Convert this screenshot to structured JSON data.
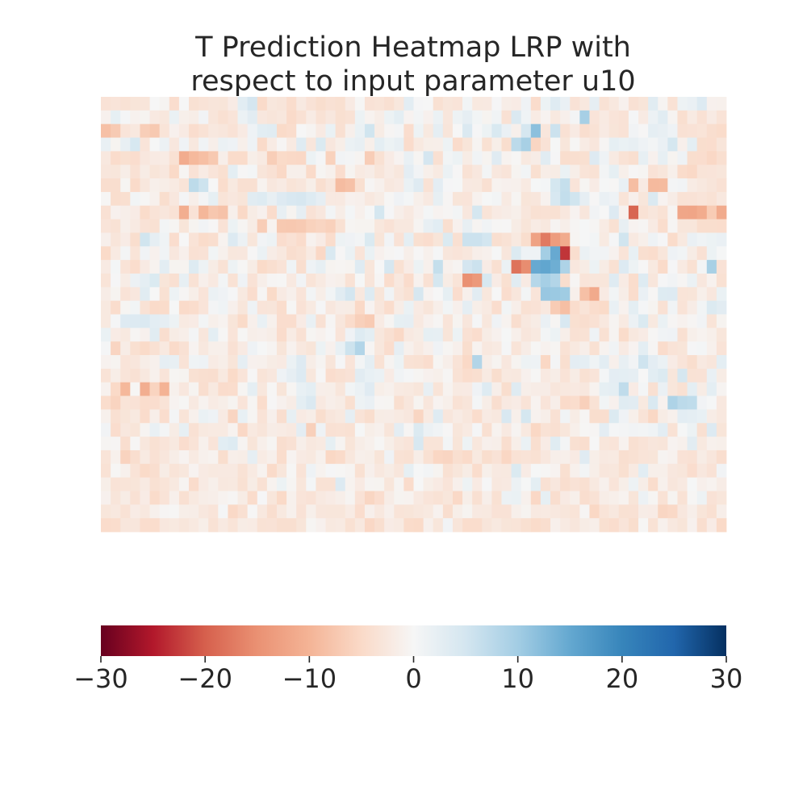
{
  "chart_data": {
    "type": "heatmap",
    "title_lines": [
      "T Prediction Heatmap LRP with",
      "respect to input parameter u10"
    ],
    "grid": false,
    "cmap": "RdBu",
    "vmin": -30,
    "vmax": 30,
    "colorbar": {
      "orientation": "horizontal",
      "placement": "bottom",
      "ticks": [
        -30,
        -20,
        -10,
        0,
        10,
        20,
        30
      ],
      "tick_labels": [
        "−30",
        "−20",
        "−10",
        "0",
        "10",
        "20",
        "30"
      ]
    },
    "rows": [
      "-3.5,-3.2,-3.6,-3.1,-3,0,-0.5,-4.4,0,-3.8,-3.4,-3,-3.1,-1.9,2.9,4.9,-4.8,-2.7,-3,-4.5,-2.3,-3.5,-4.3,-3.7,-4,-2.1,-0.2,-3.5,-3.3,-3.9,-2.7,2.8,0.2,0,-3.8,-2.9,-3.2,0.7,-2.4,-2.3,0.2,-1.6,-1.9,1.1,-4.6,1.4,3.4,1.8,-3.5,-2.5,2.4,-3.6,-2.5,-1,-3.7,-3.1,3.1,-0.5,-3.6,1.3,1.8,3.7,-1,-1.1",
      "-1,2.3,0.3,-0.9,-0.6,-2.3,-2.7,1.7,-1.3,-1.6,0.8,-3,-3.9,-3.2,1.6,3,-2.6,-3,-2.7,-4.8,-3.7,-2,-3.6,-2.6,-4,-3.6,1.4,-0.8,-1.6,1.4,2.6,-0.7,0.6,-1,1.6,-2.8,1.3,2.4,0.7,-0.6,0.9,-3.7,4,1,-2,-0.7,-2.4,-1.2,0.5,9.6,-3.2,-2.2,-3.2,-3.5,0.3,-2.1,1.5,3.1,-0.5,-4.1,-2.2,-3.7,-2.1,-3.4",
      "-8.4,-7.1,-3.2,-2.5,-6.6,-7.3,-3.3,-1,-2.1,-4.4,-3.6,-2.5,-2.8,-3.5,-2.1,1.2,2.9,3.1,-4.9,-4.5,0,-0.5,-2.1,1.7,-3.9,-1.2,1.7,5.3,-1.8,-0.3,0.5,-4.4,1.3,-2.4,2.5,-3,0,4,0.2,1.4,4.2,1.8,-1.2,4.7,11.8,-2.8,5.8,-3.7,-2.1,-4.2,-3.6,-2.1,-3.1,-3.5,0.8,-0.1,2.5,2.1,1.2,-3.7,-3.5,-3.3,-4.2,-4.7",
      "1.9,-0.6,2.1,4.5,-3.2,0.1,1.5,-2.6,1.1,-2.5,0.9,-1.4,1.6,1.2,-1.3,1.2,-4.8,-2,-0.3,-2.2,3.4,-2.8,3.9,-2.6,-1.5,1.6,2.1,-1.3,2.6,1.4,2.1,-4.6,-2.4,-1.5,-1.4,1.3,-4.6,-3.1,-0.5,-3.8,-1.5,-4.3,7.5,9.5,-5.5,-3.5,0.1,-2.9,-0.2,-2,-2.8,-0.3,2.3,1.7,2.1,1.2,0.6,1.8,4.8,-1.2,2.6,-4.3,-4.4,-3",
      "-2.5,-4.6,-4,-4.4,-2.6,-2.1,-2,-3.8,-11.2,-9.4,-8.6,-7.3,-1.4,-4.7,-4.7,-1.5,-2.2,-6.6,-4.9,-5.1,-5.2,1.4,0.3,-6.1,0.8,0.5,-0.5,-6.7,-3.8,-1.9,-0.7,1.9,-0.4,4.9,-3.9,0.7,1.4,-1.8,0.9,-0.6,3.3,-0.8,-0.2,-2.4,-1.7,3.1,0.2,-4.3,-4.1,-4,3.6,1.2,-2.2,-3.6,-4.1,2.2,-1,2.2,-0.6,1.2,-4.3,-4.4,-5.2,-4.1",
      "-2.8,-2.9,-1.6,-3.7,-1.8,-3.1,-2.6,-5,-0.4,-3.5,-2,-3.2,-4,2.6,-0.1,0.4,-3,-3.7,-5.1,-1.3,-1.3,-4.8,-0.4,-1.1,-4.4,-0.6,-2.2,-1.7,-3,-2,-2.7,2.7,0.8,-1.3,-2.2,1.6,-0.1,-3.6,-2.6,0.6,-2.6,-3.2,-0.6,0.7,-4,-1.6,-1.8,1.7,-1.5,-3.3,-3.6,0.6,2.3,-1.3,-0.1,-0.4,-3.5,-2.9,-1.3,-4.7,-5.1,-3.3,-3.2,-2.9",
      "-4.2,-4.2,-0.4,-4.8,-2.7,-1.3,-1.6,-2.2,-3.3,7.3,5.7,0,-4.5,-2.4,-3.9,-3.9,-0.8,-2.6,-2.1,-3.3,-2.8,-1.5,-4.1,-2.8,-8.9,-8.3,-4,-0.3,-1.1,-2.5,-2.1,1.7,3.4,-3.6,2.7,0.2,0.1,-2.3,-2.4,-3.9,-0.8,-1,-1.1,-2.2,0.1,0.4,4.8,6.5,-3.2,-0.4,-1.9,0.1,-0.2,1.9,-8.7,-2.1,-9.2,-9.1,0.5,0.8,-2,-2.5,-3,-3.7",
      "-0.2,-4.3,-4.1,0.7,-0.2,-1.1,-4.3,-2.6,0.5,-1.4,0.5,2.3,-3.3,-2.6,-3.1,3.1,3.5,2.1,3.6,4.3,4.6,3.5,2.4,-2.3,-2.3,-1,-1.2,-2.5,-1.8,-0.2,1.1,0.4,-1.3,-2.3,2.2,-0.3,-3.1,-3.2,-0.9,0.1,0.6,-2.2,-0.4,-3.1,-2.8,-0.9,4.4,6.7,5.3,2.4,-0.1,1.8,1.2,-3.3,-1.2,-2.9,4,-0.7,-1.7,-3.6,-3.5,-3.2,-3.6,-2.5",
      "-3.7,-1,-1.4,-1.9,-4.7,-3.4,-2.8,-3.6,-10.9,-3.5,-9.6,-7.5,-8.1,-1.2,-5.1,-1.8,-1,-4.6,2.1,-0.6,2.4,-3.5,-2.6,0.6,-1.6,0.4,-1.1,0.1,4.8,0.2,-1.4,-2.3,-1,0.4,-0.7,-0.3,0.6,-2.6,4.8,-3.3,-2.1,-1.7,-1.3,-2.8,-3.8,-3.7,-3.8,-2.6,-0.7,-2.8,0.8,0,3.6,-0.9,-19.4,-3.6,-2.8,-3.6,-0.5,-12,-12.2,-11.2,-6.9,-11.3",
      "-3.2,-3.6,-1.3,-2.2,-3.5,-3.8,0.6,-0.4,-3.1,-0.6,0.8,-0.1,-3.5,1.4,-0.4,-1.8,-6.7,-0.8,-7.3,-7.4,-7.1,-6.1,-5.6,-6.2,-3.8,-0.4,-0.6,-0.6,-2.7,-3.5,-2.5,-2.5,-0.5,2.1,2.9,-4.1,-1,2.1,-0.5,0.9,-0.2,-0.1,-1.8,-3.1,-2,-2.5,-0.5,-1.4,-0.3,0.1,-0.3,-2,-3.8,2.1,-0.7,-0.3,-2.1,-4.5,-0.3,-2.9,-2.9,-4.3,-4.3,-4.5",
      "-1.2,-3,-1.9,-4.3,5.3,2.4,1,-4.4,0,-3.4,-4.7,-4.2,-0.8,3.7,1.5,-2.9,0.8,1.3,-4.4,-3.7,-4.6,-0.9,-1.9,-4.5,1.3,1.1,0.6,3.9,-3.1,0.8,-3.5,2.6,-4,-4.4,-3.1,3.9,-3.9,5.8,5.8,5.1,-4.1,-3.6,-2.4,-4.3,-12.6,-17.3,-13.5,-11.3,-0.4,0.1,0.6,-2.2,0.3,5.3,-2.3,-1.3,1.2,0.2,-4.7,-2.4,1.8,1,1.4,1.8",
      "-4.9,-2.2,0.5,-3.3,0.9,-1,0.9,-2.6,-1.2,-3.7,-3.5,0.7,-1.1,-2.7,-2.6,-0.1,1.6,-1.7,-2.5,-4.2,-3.8,-2.2,-5.2,4.1,-0.1,1.6,-3.2,1.7,-1,-0.3,0.2,-1.4,-0.1,-1.1,0.3,-2.8,-3.2,-2.7,-1.4,-1.1,0.1,-2.8,3.8,1.2,1.2,9.9,14.8,-23,-4.2,1.6,0.8,0.8,-0.9,-3.3,2,-4.1,-4.5,-2.9,1.2,0.7,-1.8,-3.7,1.4,0.1",
      "-2.1,0.4,-3.4,-4.5,-2.1,-0.8,2.8,-0.6,-0.6,3.5,1.3,-1.8,-3.6,1.3,-0.2,-1.8,-4.9,-4.1,-3.4,1,-4.2,1.2,2.2,-0.6,-0.4,-0.6,3.4,-2.9,0,4.6,-3.8,-1.9,1.4,-1.1,6.5,-1.1,-0.5,4.9,5.8,-1.9,-3.9,1.6,-18.1,-15.4,14.8,15.3,14.2,8.9,-2.6,-1.8,1.4,-1.8,-3.8,3.7,1.3,-0.1,-2.4,-4.8,0.2,-2.2,-3.8,0.6,9.5,-3.5",
      "-3.3,0.2,-1.8,1.5,2.5,3.9,-3.1,-3.9,2.2,-3.6,-1.2,-2.3,0.6,-3.6,1.1,-3.5,-1.4,-0.3,-0.2,-2.3,0.8,-3.3,-2.2,-1,-1.3,-3.6,0.1,-3,-0.3,-4.5,-2.5,-4.6,-0.9,-3.7,4.8,-1.8,-3.3,-15,-13.9,4.5,-1.9,-4,3.1,-2.1,8.1,9.7,8.4,-4.3,-0.3,-3.2,-2.9,-2.9,3.4,-2,-4.5,3.5,-2.8,0.2,0.8,-0.3,1.6,-2.6,-0.9,-3.8",
      "-1.7,-0.6,-3.4,-2.6,3.1,0,-3.8,1.3,-0.3,-1.5,-3.2,1.6,1.1,0.2,-2.4,-4.4,-0.3,-4.9,-2.1,-1.2,-3.2,0.6,-1.5,0.7,3.1,5,-2.5,3.5,-3.1,0.9,-2.8,-3.8,4.6,-0.7,0,2.3,-4.4,-1.2,3,-2.7,0,-4.4,-2.8,0.6,-3.2,10.8,10.6,10.2,-1.2,-8.4,-11.4,-2.1,0.7,-1.6,-4.5,1.8,-0.2,3.5,3.6,-3.3,-3.1,-1.3,-2.6,1.7",
      "-2.4,-4.5,-0.4,0.7,-3.6,-4.8,-4.7,0.1,-4.8,-4.5,-3.2,0.5,1,-1.2,-2.9,1.2,-3.2,-3,-4.5,-0.2,-3.5,-2.2,0.2,-2.6,-1.7,-1.8,-5.1,-0.7,-2.8,-4.5,-1.6,1.7,-2.1,-3,-1.4,0.7,-1.2,2.5,-1.5,-2.2,-4.4,0.7,-1.4,-3.8,-3.5,-2.5,-6.9,-8.6,-4.5,-3.3,-4.5,-4.9,1.9,-0.9,2.6,0.3,-0.6,-3.7,0.9,-3.4,-1.7,0.7,3.8,3",
      "-2.4,0.3,3.6,3.7,4,2.8,2.4,1.3,-2.2,-1.9,0.6,-1.3,-0.8,-3.1,-4.9,-1.2,1.9,-1.1,-4.4,-4.4,-1.9,1.9,-3.7,-0.3,-2.8,-4.6,-6.3,-7,-2,-0.4,2.3,2.4,-2.3,-1,-0.3,-3.2,-0.6,-2.8,0.3,-2.7,1.1,-0.8,-4.2,-2.5,-1.8,1.8,-0.4,4.3,-4,-4.2,-3.7,-2.5,-0.5,-2.2,1.5,3.9,-2.4,1.7,-0.3,-0.9,-0.3,0.8,-3.3,-0.6",
      "1.7,-1.9,-2.4,-0.3,-1,3.1,-4.2,-1.8,-1.4,0.5,-2.8,2.6,-0.2,-3.2,-0.2,-1.4,-1.2,-1.6,-4.6,-2,-3.7,-0.4,-0.9,-0.1,-3.2,1.1,3.5,2.6,-2.7,-3.9,-5.1,-2.3,-1.8,2.3,2.2,-3.1,1.4,-3.7,-4.4,-1.8,-1,0.1,-1.3,-2.8,-2.4,0.6,1.4,-1.4,-3.7,-3.6,1.2,-3.8,-0.5,-4.7,-2.5,-1.9,-0.2,0.9,1.1,-3.9,-1.3,-0.8,-1.3,-2.9",
      "0.3,-5.6,-1.7,-4,-4.9,-3.8,-2.4,-4.8,-3.7,-0.7,-2.5,-1.3,-1.3,-3.7,-2.1,1.2,0.1,-0.5,-3.1,-0.9,-2.5,-3.1,1.4,-1,2,5.7,8.5,-0.3,-2.7,-4.4,2.4,-1.1,-2.2,-1.2,1.1,-0.4,-1.2,-4.3,-0.8,-2.5,-2.2,0.3,-3.3,-1.7,-0.2,-0.9,-0.4,-3.6,-2.4,-1.4,-3.8,-0.8,0.9,-2.1,-0.7,2.6,-0.3,-4.6,-3.4,-3.1,0.2,0.4,-1.1,-3.4",
      "-0.9,-0.6,-3.2,-2.8,-1.6,-1.1,2.4,2.1,-3.4,1,1.2,-2,-1.5,-3.1,2.4,-1,-1.1,-1.8,-2.1,1.6,3.6,-1.6,-0.5,-3,0.2,-3.2,0.6,2.5,-3.6,-0.5,1.4,-3.6,-3.8,-4.4,-0.4,-1.4,-3.4,-5.1,8.4,-1.6,-0.6,-2.6,-0.6,1.3,1.2,-5.3,0.5,-4.1,2.7,2.5,1,2.8,-1.2,2.1,0.8,5.5,2.7,1.6,-1.9,-3.2,-4.3,-2.3,-2.8,2.6",
      "-3.4,-1.6,-3.2,-3.7,-2.5,-1.1,-3.2,-0.4,-0.6,-3.8,-4.1,-4.2,-2.4,-4.9,-3.2,-0.1,-3.3,-2.6,1.2,2.4,3.7,-2.7,-0.1,-4.4,-3.9,-3.5,3,2,1.6,-1.9,0.9,0.3,-0.4,-1,-1.3,-0.3,-3.6,-4.5,-4.1,-2.2,-4.3,-2.4,-2.5,-1,-0.2,-2.3,-1.6,-3.4,-1.8,-3.8,-3.2,0.4,2.7,2.6,2.4,0,2.9,3.8,-2.9,4.7,-3.6,-3.5,1.9,-1.8",
      "-0.9,-5,-9.5,-0.2,-10.8,-5.8,-10.1,-1.1,-2.6,-0.6,-4.2,-2.4,-4.6,-4.5,-0.4,2.5,-2.7,-0.2,-3.1,-0.4,2,2.6,-1.4,-1.5,-2.9,0.7,1.6,3.3,-1.5,-1.1,-2.2,-2.4,-2.9,2.1,-3.3,-0.8,-2.2,-2.1,1.1,3.5,-1.4,-4.3,3.4,-1.4,-1.7,-1.7,-2.8,-2.5,-2.3,-2.6,-0.8,2.3,2.6,7,-1.9,0.4,-3.9,1.8,-2.9,-3.8,2.6,-1.8,2.6,-0.5",
      "-4.5,-5.8,-3.3,-3.5,-4.5,-4.4,-3.4,-0.7,-0.2,-2.3,-0.8,-2,-1.5,-0.6,-3.2,-0.4,-4.5,-0.1,-1,-1.7,2.6,4,-2.3,-1.4,-1.8,-4,1.3,1.8,-0.3,-0.4,-4.1,-2.8,-0.6,-2.8,-0.7,-1.3,-3.6,-3,0.4,-1.6,-4.2,-2.3,-1.9,-3.4,-0.8,-3.2,-1.4,-4.8,-4.5,-6.3,-3.6,0.7,-1,3.2,3,-2.4,4.1,-0.9,8.9,7.4,7.1,0.8,0.1,-2.5",
      "-1.1,-3.9,-3.1,-2.4,-4.6,-1.4,-4.4,0.5,-3.3,-1.1,1.7,1.2,-2.1,-5.6,2,-0.4,-3.4,-1.2,-4.2,2.2,-2.1,-1.6,-4.3,-2.8,-2.4,2.4,-3.4,-4.3,-1.8,-1.7,-2.2,-2.6,-5.5,-2.2,3.4,-2.8,-2,-2.7,-4.5,-2.1,-2.5,4.3,-1.3,4.8,-0.9,-1.4,-3.7,0.9,-1.8,-0.3,-4.3,-4.2,3.8,1.1,-1.3,-3.4,-5.3,-1.8,-1.1,2.8,2.5,2,-1.7,-2.5",
      "0.8,-4.4,-2.6,-3.1,-0.5,1.9,0.5,-1.8,2.2,-3.7,-2.4,-2.2,-2.2,-0.8,-5.2,-2.4,-3,-1.7,-2,-2.3,2.7,-6.3,1.2,-3.7,-3.6,-3.8,0.1,-1.5,-1.1,-3,2.7,-0.3,3.8,1.5,0.9,-0.1,-2.9,-2.2,0.3,-3.9,-0.8,-2.3,-0.5,-2.4,-5.3,-3.6,-3.9,-2.9,-1.3,-0.2,-0.3,2.7,0.3,0.5,0.8,0.6,1,2.8,-3.6,0.1,1.4,-3.9,3.7,-3.1",
      "-0.4,-0.3,-4.2,-0.2,-2.7,-3.8,-3.2,-2.4,-4.4,-3.4,-1.1,-3.2,2.9,3.5,-0.5,-3.1,-1.3,-0.4,-4.2,-3.7,-1.4,-2.5,-2.2,2.3,-0.5,-3.1,-1.6,-1.1,-0.2,-1.5,-2.7,-3.2,4.4,-3.3,-3.3,0.6,-3.1,1.3,-2.7,-1.2,-1.4,-4.2,-1.5,1.7,-4.1,-1.9,3.2,0.5,-3.9,-4.2,0,-2.9,-3.2,-0.9,-3.9,-3.4,-2.8,-3,-0.7,-1.1,3,-2.4,-1.1,-1.3",
      "-3.3,-1.1,-5.9,-4.2,-2.2,-3.7,-2.8,-1.6,-0.7,-2.2,-1.1,-0.8,-4.3,-1.4,-1.6,2.4,-2,-1.2,-4.5,-0.7,-2.1,-2.4,-1.1,-5.3,-4.8,-2.7,-1.3,-1.5,-3.1,1.1,-3.6,-3.8,-1.6,-3.8,-5.4,-5.6,-4.1,-4.8,-2.4,-4.3,-3.5,-5.4,-3.6,-3.4,-3.8,-2.6,-1.4,-1.3,-2.1,3.3,-1.5,-2.3,-2.2,-4.1,-3.8,-3.3,-3.1,-0.5,-0.9,-3.5,-3.7,-1.8,-2.8,-4.2",
      "-3.6,-0.2,-1.1,-3.4,-4.9,-4.2,-1.8,-3.3,-2.7,-0.7,-2.1,-2.4,-2.3,-2.3,-3.6,-2.2,-0.8,-4.8,-2.9,-0.2,-3.4,1.2,-0.8,0.2,-0.2,-0.5,-3.8,-1.2,-2.5,-1.8,-2.8,2.3,0.1,0.6,-0.6,-3.8,-2.9,-1.8,-4.5,-1.3,-2.3,-2.4,3.9,-1.9,0.1,-0.2,-0.7,-4,-1.1,0.6,-1.5,-2.8,-2.7,-4,-2.2,2.9,-1.3,-1.3,-2.6,-2.9,-4.4,-2.6,-3.5,0.8",
      "-1.5,-3.4,-3.3,-3.1,-2.2,-3.8,-3.3,-2.4,-0.5,-4.6,-2.1,-1.3,-2.5,-2.4,-3.8,-1.8,-3.7,-0.8,1.4,-0.4,-2.9,0.4,-3.6,-3.6,3.7,-0.8,-2.1,-0.5,-0.6,-2.9,-0.5,-4.6,0,-1.5,-2.1,-3.2,-1.2,1.3,-2.1,0.2,-2.5,-2.3,1.5,0.1,2.6,-3.7,-2.6,-4.2,-3.5,-3.9,-2.4,-1.1,-3.2,-1.5,1.3,-1.6,-4.5,-1.1,-2.8,-2.3,0.1,-1.2,-0.8,-1.7",
      "-1,-3,-1.8,-3.7,-1.9,-4.7,-3.4,-1.2,-3.9,-2.4,-1.6,-1.4,-0.8,-0.3,-1.8,-4.6,0.2,-2.9,-5,-1.1,-3.2,-3.5,-2.3,-1.9,-1.4,-0.5,-3.5,-5.5,-4.4,-1.7,-0.6,-0.8,-2.3,-3.2,-3.6,-2.9,-5.1,-1.5,-3.9,-1.4,-3.8,1.5,1.7,-1.1,-5.2,2.3,-4.2,-2.1,-1.3,-4.2,-3.6,-1.6,-1.3,-0.8,-3.1,1.5,-0.4,-3.6,-0.6,-3.6,-0.2,1.3,-3.5,-2.9",
      "-2.9,-2.5,-3.6,-1.9,-2.5,-1.1,-0.3,-0.2,-1.5,-1.6,-2.6,-3.2,0.3,-5.1,-3.9,-0.1,-2.5,-4.2,-2.4,-1.1,-3.5,-1.3,-2.8,-2.9,-2.9,-2,-4.4,-1.2,-2.5,-1.2,-3.3,-3.1,-2.7,-2.4,-0.9,-4.2,-1.5,-0.6,-2.3,-2.4,-3.5,-3.5,-1.3,-0.6,-2.3,-2.2,-2.5,-2.9,-3.3,-0.3,-5.3,-3.3,-2.5,-3.8,-3.7,-1.7,-1.9,-5.5,-5.1,-2.6,-1.4,-3.1,-3.9,-1.4",
      "-4.6,-4.5,-2.8,-2.8,-4.4,-4.5,-2.6,-2.4,-2.9,-2.4,-1.5,-3.6,-2.3,-3.3,-1.8,-2,-3.6,-3.5,-4.1,-4.1,-3.1,-0.4,-1,-2.4,-2.2,-3.8,-2.5,-5.2,-4.1,-1.9,-2.2,-4.7,-4.9,-1.2,-2.9,0.8,-3,-4.5,-4.5,-3,-2.4,-3.1,-3.3,-4,-4.7,-4.2,-1.2,-2.2,-2.8,-1.8,-1.4,-4,-4.4,-3.2,-4.3,-0.2,-3.6,-1.1,-2.5,-3.1,-1,-4.2,-1.9,-5"
    ]
  }
}
